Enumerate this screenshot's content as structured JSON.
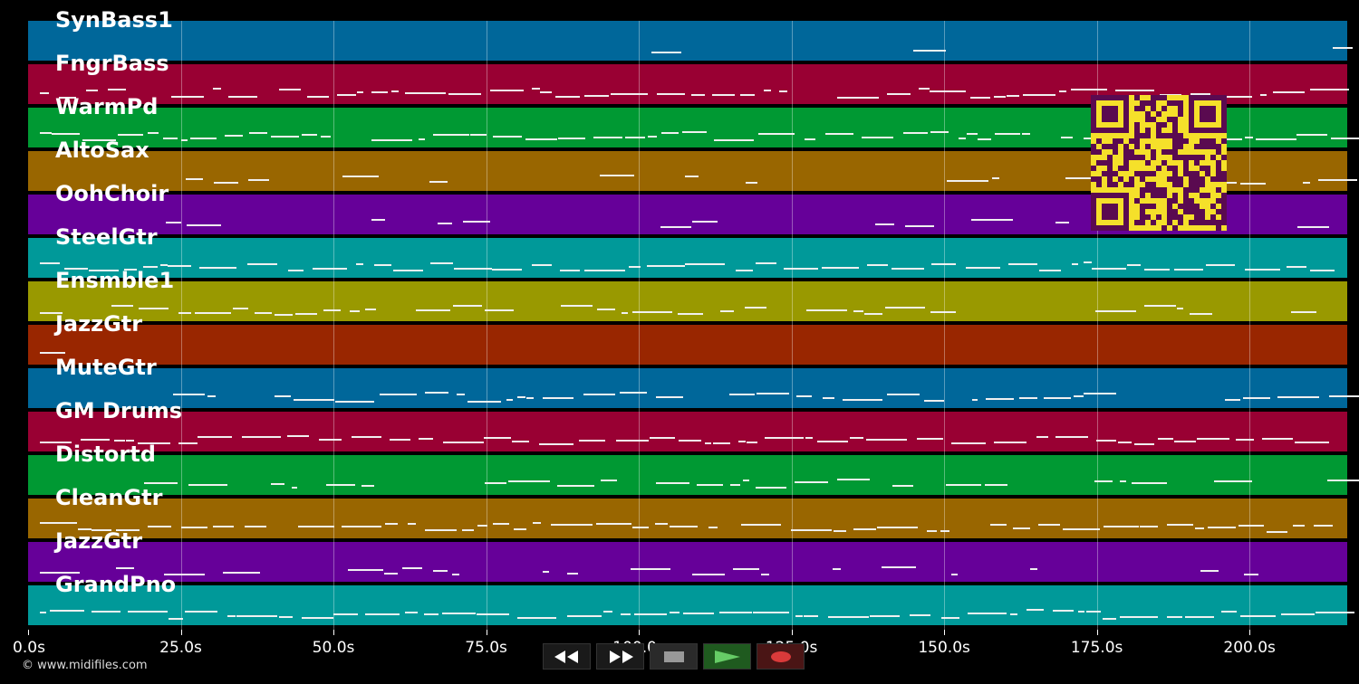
{
  "tracks": [
    {
      "name": "SynBass1",
      "color": "#00679a"
    },
    {
      "name": "FngrBass",
      "color": "#990033"
    },
    {
      "name": "WarmPd",
      "color": "#009933"
    },
    {
      "name": "AltoSax",
      "color": "#996600"
    },
    {
      "name": "OohChoir",
      "color": "#660099"
    },
    {
      "name": "SteelGtr",
      "color": "#009999"
    },
    {
      "name": "Ensmble1",
      "color": "#999900"
    },
    {
      "name": "JazzGtr",
      "color": "#992600"
    },
    {
      "name": "MuteGtr",
      "color": "#00679a"
    },
    {
      "name": "GM Drums",
      "color": "#990033"
    },
    {
      "name": "Distortd",
      "color": "#009933"
    },
    {
      "name": "CleanGtr",
      "color": "#996600"
    },
    {
      "name": "JazzGtr",
      "color": "#660099"
    },
    {
      "name": "GrandPno",
      "color": "#009999"
    }
  ],
  "timeline": {
    "ticks": [
      "0.0s",
      "25.0s",
      "50.0s",
      "75.0s",
      "100.0s",
      "125.0s",
      "150.0s",
      "175.0s",
      "200.0s"
    ],
    "tick_seconds": [
      0,
      25,
      50,
      75,
      100,
      125,
      150,
      175,
      200
    ],
    "max_seconds": 216
  },
  "transport": {
    "rewind": "rewind-icon",
    "fast_forward": "fast-forward-icon",
    "stop": "stop-icon",
    "play": "play-icon",
    "record": "record-icon"
  },
  "copyright": "© www.midifiles.com",
  "qr": "qr-code"
}
